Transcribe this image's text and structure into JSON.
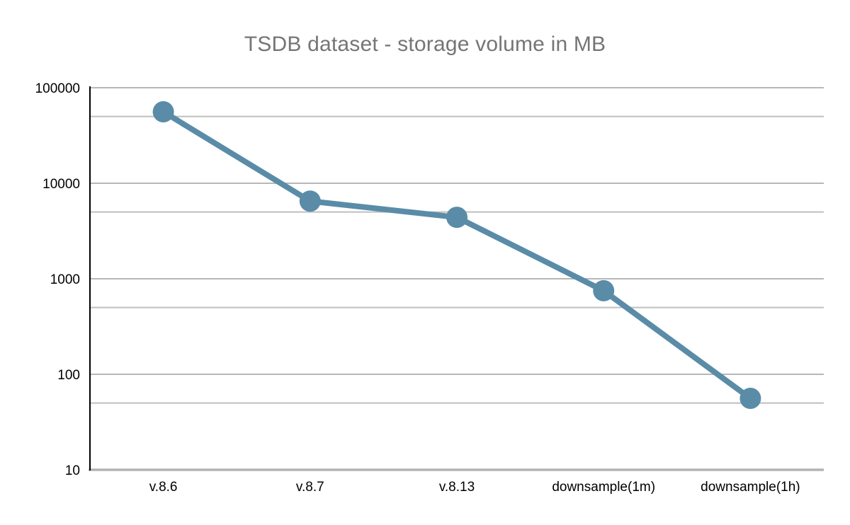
{
  "chart_data": {
    "type": "line",
    "title": "TSDB dataset - storage volume in MB",
    "categories": [
      "v.8.6",
      "v.8.7",
      "v.8.13",
      "downsample(1m)",
      "downsample(1h)"
    ],
    "series": [
      {
        "name": "storage volume (MB)",
        "values": [
          56000,
          6500,
          4400,
          750,
          56
        ]
      }
    ],
    "xlabel": "",
    "ylabel": "",
    "y_scale": "log",
    "ylim": [
      10,
      100000
    ],
    "y_major_ticks": [
      100000,
      10000,
      1000,
      100,
      10
    ],
    "y_minor_ticks": [
      50000,
      5000,
      500,
      50
    ],
    "grid": true,
    "legend_position": "none",
    "marker": "circle",
    "colors": {
      "series_line": "#5A8CA8",
      "marker_fill": "#5A8CA8",
      "gridline_major": "#b7b7b7",
      "gridline_minor": "#bfbfbf",
      "y_axis_line": "#000000",
      "x_axis_line": "#b3b3b3",
      "title_text": "#757575",
      "tick_label_text": "#000000",
      "background": "#ffffff"
    }
  }
}
